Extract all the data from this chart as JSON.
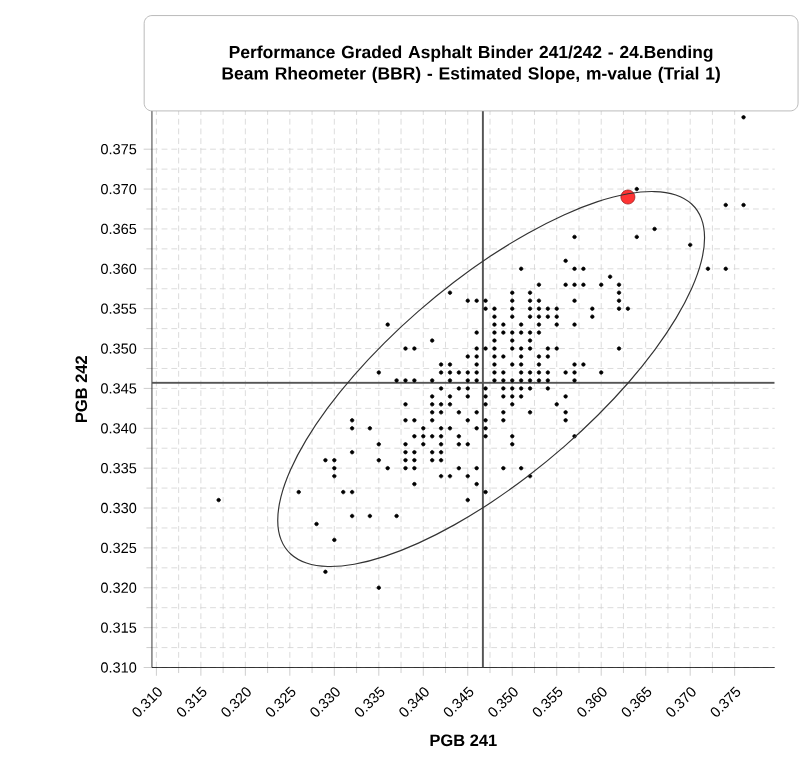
{
  "chart_data": {
    "type": "scatter",
    "title": "Performance Graded Asphalt Binder 241/242 - 24.Bending Beam Rheometer (BBR) - Estimated Slope, m-value (Trial 1)",
    "xlabel": "PGB 241",
    "ylabel": "PGB 242",
    "xlim": [
      0.3095,
      0.3795
    ],
    "ylim": [
      0.31,
      0.3798
    ],
    "xticks": [
      {
        "value": 0.31,
        "label": "0.310"
      },
      {
        "value": 0.315,
        "label": "0.315"
      },
      {
        "value": 0.32,
        "label": "0.320"
      },
      {
        "value": 0.325,
        "label": "0.325"
      },
      {
        "value": 0.33,
        "label": "0.330"
      },
      {
        "value": 0.335,
        "label": "0.335"
      },
      {
        "value": 0.34,
        "label": "0.340"
      },
      {
        "value": 0.345,
        "label": "0.345"
      },
      {
        "value": 0.35,
        "label": "0.350"
      },
      {
        "value": 0.355,
        "label": "0.355"
      },
      {
        "value": 0.36,
        "label": "0.360"
      },
      {
        "value": 0.365,
        "label": "0.365"
      },
      {
        "value": 0.37,
        "label": "0.370"
      },
      {
        "value": 0.375,
        "label": "0.375"
      }
    ],
    "yticks": [
      {
        "value": 0.31,
        "label": "0.310"
      },
      {
        "value": 0.315,
        "label": "0.315"
      },
      {
        "value": 0.32,
        "label": "0.320"
      },
      {
        "value": 0.325,
        "label": "0.325"
      },
      {
        "value": 0.33,
        "label": "0.330"
      },
      {
        "value": 0.335,
        "label": "0.335"
      },
      {
        "value": 0.34,
        "label": "0.340"
      },
      {
        "value": 0.345,
        "label": "0.345"
      },
      {
        "value": 0.35,
        "label": "0.350"
      },
      {
        "value": 0.355,
        "label": "0.355"
      },
      {
        "value": 0.36,
        "label": "0.360"
      },
      {
        "value": 0.365,
        "label": "0.365"
      },
      {
        "value": 0.37,
        "label": "0.370"
      },
      {
        "value": 0.375,
        "label": "0.375"
      }
    ],
    "grid": true,
    "ref_lines": [
      {
        "axis": "x",
        "value": 0.3467,
        "color": "#555555"
      },
      {
        "axis": "y",
        "value": 0.3457,
        "color": "#555555"
      }
    ],
    "series": [
      {
        "color": "#000000",
        "marker": "circle",
        "x": [
          0.376,
          0.374,
          0.376,
          0.364,
          0.366,
          0.357,
          0.364,
          0.37,
          0.356,
          0.351,
          0.357,
          0.358,
          0.372,
          0.374,
          0.361,
          0.353,
          0.356,
          0.357,
          0.358,
          0.36,
          0.362,
          0.343,
          0.35,
          0.352,
          0.362,
          0.345,
          0.346,
          0.347,
          0.35,
          0.352,
          0.353,
          0.357,
          0.362,
          0.347,
          0.348,
          0.35,
          0.352,
          0.353,
          0.354,
          0.355,
          0.359,
          0.362,
          0.363,
          0.348,
          0.35,
          0.352,
          0.353,
          0.354,
          0.355,
          0.359,
          0.336,
          0.348,
          0.349,
          0.351,
          0.353,
          0.355,
          0.357,
          0.346,
          0.348,
          0.349,
          0.35,
          0.351,
          0.352,
          0.353,
          0.341,
          0.348,
          0.35,
          0.352,
          0.338,
          0.339,
          0.346,
          0.347,
          0.348,
          0.35,
          0.351,
          0.352,
          0.354,
          0.355,
          0.362,
          0.345,
          0.346,
          0.348,
          0.349,
          0.351,
          0.353,
          0.354,
          0.342,
          0.343,
          0.346,
          0.348,
          0.35,
          0.351,
          0.353,
          0.357,
          0.358,
          0.335,
          0.342,
          0.343,
          0.344,
          0.345,
          0.346,
          0.348,
          0.349,
          0.351,
          0.352,
          0.353,
          0.354,
          0.356,
          0.357,
          0.36,
          0.337,
          0.338,
          0.339,
          0.341,
          0.343,
          0.345,
          0.346,
          0.348,
          0.349,
          0.35,
          0.351,
          0.352,
          0.353,
          0.354,
          0.357,
          0.342,
          0.344,
          0.345,
          0.347,
          0.349,
          0.35,
          0.351,
          0.352,
          0.354,
          0.341,
          0.343,
          0.345,
          0.347,
          0.349,
          0.35,
          0.351,
          0.356,
          0.338,
          0.341,
          0.342,
          0.343,
          0.347,
          0.35,
          0.355,
          0.341,
          0.342,
          0.344,
          0.346,
          0.349,
          0.352,
          0.356,
          0.332,
          0.338,
          0.339,
          0.341,
          0.345,
          0.347,
          0.349,
          0.356,
          0.332,
          0.334,
          0.34,
          0.342,
          0.343,
          0.346,
          0.347,
          0.339,
          0.34,
          0.341,
          0.342,
          0.344,
          0.347,
          0.35,
          0.357,
          0.335,
          0.338,
          0.34,
          0.342,
          0.344,
          0.345,
          0.35,
          0.332,
          0.338,
          0.339,
          0.341,
          0.342,
          0.329,
          0.33,
          0.335,
          0.338,
          0.339,
          0.341,
          0.342,
          0.33,
          0.336,
          0.338,
          0.339,
          0.344,
          0.346,
          0.349,
          0.351,
          0.33,
          0.342,
          0.343,
          0.345,
          0.352,
          0.339,
          0.346,
          0.326,
          0.331,
          0.332,
          0.347,
          0.317,
          0.345,
          0.332,
          0.334,
          0.337,
          0.328,
          0.33,
          0.329,
          0.335
        ],
        "values": [
          0.379,
          0.368,
          0.368,
          0.37,
          0.365,
          0.364,
          0.364,
          0.363,
          0.361,
          0.36,
          0.36,
          0.36,
          0.36,
          0.36,
          0.359,
          0.358,
          0.358,
          0.358,
          0.358,
          0.358,
          0.358,
          0.357,
          0.357,
          0.357,
          0.357,
          0.356,
          0.356,
          0.356,
          0.356,
          0.356,
          0.356,
          0.356,
          0.356,
          0.355,
          0.355,
          0.355,
          0.355,
          0.355,
          0.355,
          0.355,
          0.355,
          0.355,
          0.355,
          0.354,
          0.354,
          0.354,
          0.354,
          0.354,
          0.354,
          0.354,
          0.353,
          0.353,
          0.353,
          0.353,
          0.353,
          0.353,
          0.353,
          0.352,
          0.352,
          0.352,
          0.352,
          0.352,
          0.352,
          0.352,
          0.351,
          0.351,
          0.351,
          0.351,
          0.35,
          0.35,
          0.35,
          0.35,
          0.35,
          0.35,
          0.35,
          0.35,
          0.35,
          0.35,
          0.35,
          0.349,
          0.349,
          0.349,
          0.349,
          0.349,
          0.349,
          0.349,
          0.348,
          0.348,
          0.348,
          0.348,
          0.348,
          0.348,
          0.348,
          0.348,
          0.348,
          0.347,
          0.347,
          0.347,
          0.347,
          0.347,
          0.347,
          0.347,
          0.347,
          0.347,
          0.347,
          0.347,
          0.347,
          0.347,
          0.347,
          0.347,
          0.346,
          0.346,
          0.346,
          0.346,
          0.346,
          0.346,
          0.346,
          0.346,
          0.346,
          0.346,
          0.346,
          0.346,
          0.346,
          0.346,
          0.346,
          0.345,
          0.345,
          0.345,
          0.345,
          0.345,
          0.345,
          0.345,
          0.345,
          0.345,
          0.344,
          0.344,
          0.344,
          0.344,
          0.344,
          0.344,
          0.344,
          0.344,
          0.343,
          0.343,
          0.343,
          0.343,
          0.343,
          0.343,
          0.343,
          0.342,
          0.342,
          0.342,
          0.342,
          0.342,
          0.342,
          0.342,
          0.341,
          0.341,
          0.341,
          0.341,
          0.341,
          0.341,
          0.341,
          0.341,
          0.34,
          0.34,
          0.34,
          0.34,
          0.34,
          0.34,
          0.34,
          0.339,
          0.339,
          0.339,
          0.339,
          0.339,
          0.339,
          0.339,
          0.339,
          0.338,
          0.338,
          0.338,
          0.338,
          0.338,
          0.338,
          0.338,
          0.337,
          0.337,
          0.337,
          0.337,
          0.337,
          0.336,
          0.336,
          0.336,
          0.336,
          0.336,
          0.336,
          0.336,
          0.335,
          0.335,
          0.335,
          0.335,
          0.335,
          0.335,
          0.335,
          0.335,
          0.334,
          0.334,
          0.334,
          0.334,
          0.334,
          0.333,
          0.333,
          0.332,
          0.332,
          0.332,
          0.332,
          0.331,
          0.331,
          0.329,
          0.329,
          0.329,
          0.328,
          0.326,
          0.322,
          0.32
        ]
      },
      {
        "color": "#ff3333",
        "marker": "circle",
        "x": [
          0.363
        ],
        "values": [
          0.369
        ]
      }
    ]
  }
}
